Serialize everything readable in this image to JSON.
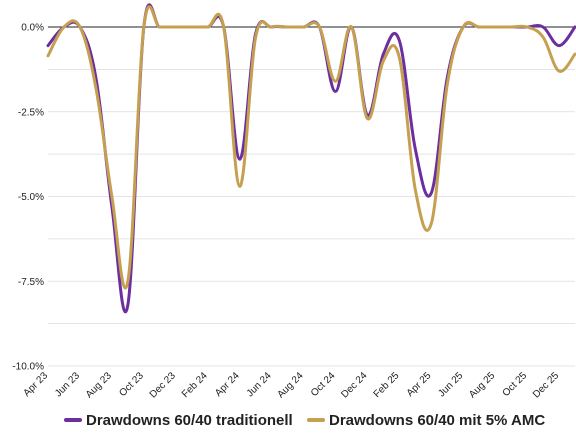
{
  "chart_data": {
    "type": "line",
    "title": "",
    "xlabel": "",
    "ylabel": "",
    "ylim": [
      -10.0,
      0.0
    ],
    "yticks": [
      {
        "value": 0.0,
        "label": "0.0%"
      },
      {
        "value": -2.5,
        "label": "-2.5%"
      },
      {
        "value": -5.0,
        "label": "-5.0%"
      },
      {
        "value": -7.5,
        "label": "-7.5%"
      },
      {
        "value": -10.0,
        "label": "-10.0%"
      }
    ],
    "xticks": [
      {
        "value": 0,
        "label": "Apr 23"
      },
      {
        "value": 2,
        "label": "Jun 23"
      },
      {
        "value": 4,
        "label": "Aug 23"
      },
      {
        "value": 6,
        "label": "Oct 23"
      },
      {
        "value": 8,
        "label": "Dec 23"
      },
      {
        "value": 10,
        "label": "Feb 24"
      },
      {
        "value": 12,
        "label": "Apr 24"
      },
      {
        "value": 14,
        "label": "Jun 24"
      },
      {
        "value": 16,
        "label": "Aug 24"
      },
      {
        "value": 18,
        "label": "Oct 24"
      },
      {
        "value": 20,
        "label": "Dec 24"
      },
      {
        "value": 22,
        "label": "Feb 25"
      },
      {
        "value": 24,
        "label": "Apr 25"
      },
      {
        "value": 26,
        "label": "Jun 25"
      },
      {
        "value": 28,
        "label": "Aug 25"
      },
      {
        "value": 30,
        "label": "Oct 25"
      },
      {
        "value": 32,
        "label": "Dec 25"
      }
    ],
    "xlim": [
      0,
      33
    ],
    "grid": true,
    "legend_position": "bottom",
    "series": [
      {
        "name": "Drawdowns 60/40 traditionell",
        "color": "#6b2fa0",
        "x": [
          0,
          1,
          2,
          3,
          4,
          5,
          6,
          7,
          8,
          9,
          10,
          11,
          12,
          13,
          14,
          15,
          16,
          17,
          18,
          19,
          20,
          21,
          22,
          23,
          24,
          25,
          26,
          27,
          28,
          29,
          30,
          31,
          32,
          33
        ],
        "values": [
          -0.55,
          0.0,
          0.0,
          -1.5,
          -5.3,
          -8.2,
          0.0,
          0.0,
          0.0,
          0.0,
          0.0,
          0.0,
          -3.9,
          -0.2,
          0.0,
          0.0,
          0.0,
          0.0,
          -1.9,
          0.0,
          -2.6,
          -0.8,
          -0.4,
          -3.6,
          -4.9,
          -1.5,
          0.0,
          0.0,
          0.0,
          0.0,
          0.0,
          0.0,
          -0.55,
          0.0
        ]
      },
      {
        "name": "Drawdowns 60/40 mit 5% AMC",
        "color": "#c5a050",
        "x": [
          0,
          1,
          2,
          3,
          4,
          5,
          6,
          7,
          8,
          9,
          10,
          11,
          12,
          13,
          14,
          15,
          16,
          17,
          18,
          19,
          20,
          21,
          22,
          23,
          24,
          25,
          26,
          27,
          28,
          29,
          30,
          31,
          32,
          33
        ],
        "values": [
          -0.85,
          0.0,
          0.0,
          -1.8,
          -5.0,
          -7.5,
          0.0,
          0.0,
          0.0,
          0.0,
          0.0,
          0.0,
          -4.7,
          -0.3,
          0.0,
          0.0,
          0.0,
          0.0,
          -1.6,
          0.0,
          -2.7,
          -1.0,
          -0.9,
          -4.8,
          -5.8,
          -1.7,
          0.0,
          0.0,
          0.0,
          0.0,
          0.0,
          -0.3,
          -1.3,
          -0.8
        ]
      }
    ]
  }
}
